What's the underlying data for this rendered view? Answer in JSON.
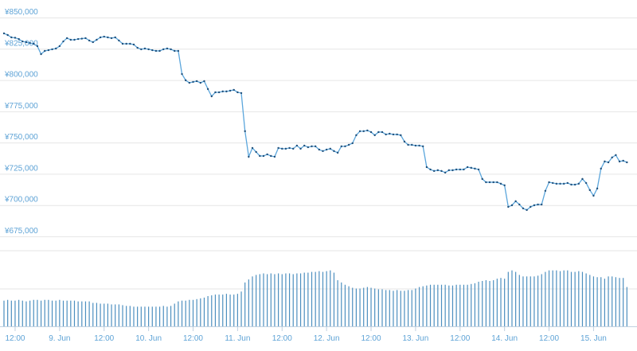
{
  "chart_data": {
    "type": "line",
    "x": [
      9,
      10,
      11,
      12,
      13,
      14,
      15,
      16,
      17,
      18,
      19,
      20,
      21,
      22,
      23,
      24,
      25,
      26,
      27,
      28,
      29,
      30,
      31,
      32,
      33,
      34,
      35,
      36,
      37,
      38,
      39,
      40,
      41,
      42,
      43,
      44,
      45,
      46,
      47,
      48,
      49,
      50,
      51,
      52,
      53,
      54,
      55,
      56,
      57,
      58,
      59,
      60,
      61,
      62,
      63,
      64,
      65,
      66,
      67,
      68,
      69,
      70,
      71,
      72,
      73,
      74,
      75,
      76,
      77,
      78,
      79,
      80,
      81,
      82,
      83,
      84,
      85,
      86,
      87,
      88,
      89,
      90,
      91,
      92,
      93,
      94,
      95,
      96,
      97,
      98,
      99,
      100,
      101,
      102,
      103,
      104,
      105,
      106,
      107,
      108,
      109,
      110,
      111,
      112,
      113,
      114,
      115,
      116,
      117,
      118,
      119,
      120,
      121,
      122,
      123,
      124,
      125,
      126,
      127,
      128,
      129,
      130,
      131,
      132,
      133,
      134,
      135,
      136,
      137,
      138,
      139,
      140,
      141,
      142,
      143,
      144,
      145,
      146,
      147,
      148,
      149,
      150,
      151,
      152,
      153,
      154,
      155,
      156,
      157,
      158,
      159,
      160,
      161,
      162,
      163,
      164,
      165,
      166,
      167,
      168,
      169,
      170,
      171,
      172,
      173,
      174,
      175,
      176,
      177
    ],
    "xlim": [
      9,
      178
    ],
    "xticks": [
      {
        "value": 12,
        "label": "12:00"
      },
      {
        "value": 24,
        "label": "9. Jun"
      },
      {
        "value": 36,
        "label": "12:00"
      },
      {
        "value": 48,
        "label": "10. Jun"
      },
      {
        "value": 60,
        "label": "12:00"
      },
      {
        "value": 72,
        "label": "11. Jun"
      },
      {
        "value": 84,
        "label": "12:00"
      },
      {
        "value": 96,
        "label": "12. Jun"
      },
      {
        "value": 108,
        "label": "12:00"
      },
      {
        "value": 120,
        "label": "13. Jun"
      },
      {
        "value": 132,
        "label": "12:00"
      },
      {
        "value": 144,
        "label": "14. Jun"
      },
      {
        "value": 156,
        "label": "12:00"
      },
      {
        "value": 168,
        "label": "15. Jun"
      }
    ],
    "ylim": [
      675000,
      850000
    ],
    "yticks": [
      {
        "value": 675000,
        "label": "¥675,000"
      },
      {
        "value": 700000,
        "label": "¥700,000"
      },
      {
        "value": 725000,
        "label": "¥725,000"
      },
      {
        "value": 750000,
        "label": "¥750,000"
      },
      {
        "value": 775000,
        "label": "¥775,000"
      },
      {
        "value": 800000,
        "label": "¥800,000"
      },
      {
        "value": 825000,
        "label": "¥825,000"
      },
      {
        "value": 850000,
        "label": "¥850,000"
      }
    ],
    "y2lim": [
      0,
      100
    ],
    "grid": true,
    "series": [
      {
        "color": "#5ba6dc",
        "marker_color": "#1f4e79",
        "values": [
          837300,
          836000,
          834100,
          833800,
          832800,
          830900,
          830300,
          829600,
          829000,
          827100,
          820700,
          823300,
          823900,
          824600,
          825200,
          827100,
          830900,
          833500,
          832200,
          832200,
          832800,
          833100,
          833500,
          831600,
          830300,
          832200,
          834100,
          834700,
          834100,
          833500,
          834100,
          831600,
          829000,
          829000,
          829000,
          828400,
          825800,
          824600,
          825200,
          824600,
          823900,
          823300,
          823300,
          824600,
          825200,
          824600,
          823300,
          823300,
          804800,
          799800,
          797800,
          798500,
          799100,
          797800,
          799100,
          792800,
          787000,
          790200,
          790200,
          790900,
          790900,
          791500,
          792100,
          790200,
          789600,
          759100,
          738700,
          745700,
          742500,
          739300,
          739300,
          740600,
          739300,
          738700,
          745700,
          745100,
          745100,
          745700,
          745100,
          747600,
          745100,
          747600,
          746300,
          747000,
          747000,
          744400,
          743200,
          744400,
          745100,
          743200,
          741900,
          747000,
          747000,
          748200,
          749500,
          755900,
          759100,
          759100,
          759700,
          758400,
          755900,
          758400,
          758400,
          756500,
          757100,
          756500,
          756500,
          755900,
          750800,
          748200,
          748200,
          747600,
          747600,
          747000,
          730400,
          728500,
          727300,
          727900,
          727300,
          726000,
          727900,
          727900,
          728500,
          728500,
          728500,
          730400,
          729800,
          729200,
          728500,
          720900,
          718300,
          718300,
          718300,
          718300,
          717100,
          715800,
          698600,
          699900,
          703100,
          700500,
          697400,
          696100,
          698600,
          699900,
          700500,
          700500,
          711400,
          718300,
          717700,
          717100,
          717100,
          717100,
          717700,
          716400,
          716400,
          717100,
          720900,
          717700,
          712000,
          707500,
          713300,
          729200,
          734900,
          734200,
          738100,
          740000,
          734900,
          735500,
          734200
        ]
      },
      {
        "type": "bar",
        "axis": "y2",
        "color": "#4d8fbf",
        "values": [
          34,
          35,
          34,
          34,
          35,
          34,
          33,
          34,
          35,
          35,
          34,
          35,
          35,
          34,
          34,
          35,
          34,
          34,
          34,
          34,
          33,
          33,
          33,
          33,
          31,
          31,
          30,
          30,
          30,
          29,
          29,
          29,
          28,
          27,
          27,
          26,
          26,
          26,
          26,
          26,
          26,
          26,
          26,
          27,
          26,
          27,
          30,
          33,
          34,
          34,
          35,
          35,
          36,
          37,
          38,
          40,
          41,
          42,
          42,
          42,
          43,
          42,
          42,
          43,
          46,
          58,
          62,
          66,
          68,
          69,
          70,
          69,
          70,
          69,
          70,
          69,
          70,
          70,
          69,
          70,
          70,
          71,
          71,
          72,
          72,
          73,
          72,
          73,
          74,
          71,
          61,
          58,
          55,
          53,
          51,
          50,
          50,
          51,
          52,
          51,
          50,
          49,
          49,
          48,
          48,
          47,
          48,
          47,
          47,
          48,
          48,
          50,
          52,
          53,
          54,
          55,
          55,
          55,
          55,
          55,
          54,
          54,
          55,
          55,
          55,
          55,
          56,
          57,
          59,
          60,
          61,
          60,
          61,
          63,
          64,
          63,
          72,
          74,
          72,
          68,
          66,
          66,
          66,
          66,
          67,
          69,
          72,
          74,
          74,
          74,
          73,
          74,
          74,
          72,
          72,
          73,
          72,
          70,
          68,
          66,
          65,
          65,
          63,
          66,
          66,
          65,
          64,
          64,
          52
        ]
      }
    ]
  }
}
